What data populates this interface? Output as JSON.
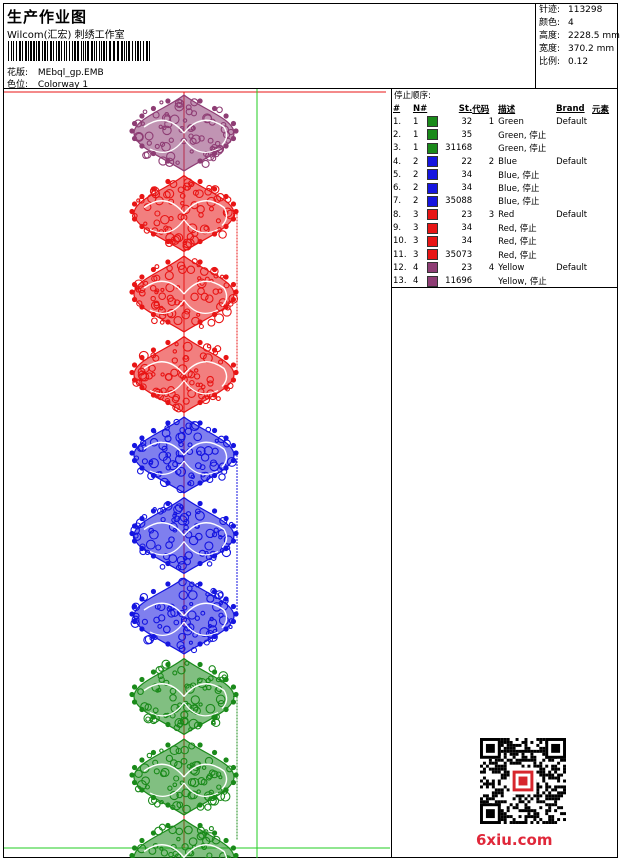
{
  "header": {
    "title": "生产作业图",
    "studio": "Wilcom(汇宏) 刺绣工作室",
    "file_label": "花版:",
    "file_value": "MEbql_gp.EMB",
    "colorway_label": "色位:",
    "colorway_value": "Colorway 1"
  },
  "stats": [
    {
      "label": "针迹:",
      "value": "113298"
    },
    {
      "label": "颜色:",
      "value": "4"
    },
    {
      "label": "高度:",
      "value": "2228.5 mm"
    },
    {
      "label": "宽度:",
      "value": "370.2 mm"
    },
    {
      "label": "比例:",
      "value": "0.12"
    }
  ],
  "stop_panel": {
    "title": "停止顺序:",
    "headers": [
      "#",
      "N#",
      "",
      "St.",
      "代码",
      "描述",
      "Brand",
      "元素"
    ],
    "rows": [
      {
        "num": "1.",
        "n": "1",
        "color": "#1a8a1a",
        "st": "32",
        "code": "1",
        "desc": "Green",
        "brand": "Default"
      },
      {
        "num": "2.",
        "n": "1",
        "color": "#1a8a1a",
        "st": "35",
        "code": "",
        "desc": "Green, 停止",
        "brand": ""
      },
      {
        "num": "3.",
        "n": "1",
        "color": "#1a8a1a",
        "st": "31168",
        "code": "",
        "desc": "Green, 停止",
        "brand": ""
      },
      {
        "num": "4.",
        "n": "2",
        "color": "#1515e0",
        "st": "22",
        "code": "2",
        "desc": "Blue",
        "brand": "Default"
      },
      {
        "num": "5.",
        "n": "2",
        "color": "#1515e0",
        "st": "34",
        "code": "",
        "desc": "Blue, 停止",
        "brand": ""
      },
      {
        "num": "6.",
        "n": "2",
        "color": "#1515e0",
        "st": "34",
        "code": "",
        "desc": "Blue, 停止",
        "brand": ""
      },
      {
        "num": "7.",
        "n": "2",
        "color": "#1515e0",
        "st": "35088",
        "code": "",
        "desc": "Blue, 停止",
        "brand": ""
      },
      {
        "num": "8.",
        "n": "3",
        "color": "#e81515",
        "st": "23",
        "code": "3",
        "desc": "Red",
        "brand": "Default"
      },
      {
        "num": "9.",
        "n": "3",
        "color": "#e81515",
        "st": "34",
        "code": "",
        "desc": "Red, 停止",
        "brand": ""
      },
      {
        "num": "10.",
        "n": "3",
        "color": "#e81515",
        "st": "34",
        "code": "",
        "desc": "Red, 停止",
        "brand": ""
      },
      {
        "num": "11.",
        "n": "3",
        "color": "#e81515",
        "st": "35073",
        "code": "",
        "desc": "Red, 停止",
        "brand": ""
      },
      {
        "num": "12.",
        "n": "4",
        "color": "#8e3d74",
        "st": "23",
        "code": "4",
        "desc": "Yellow",
        "brand": "Default"
      },
      {
        "num": "13.",
        "n": "4",
        "color": "#8e3d74",
        "st": "11696",
        "code": "",
        "desc": "Yellow, 停止",
        "brand": ""
      }
    ]
  },
  "design": {
    "motif_colors": [
      "#8e3d74",
      "#e81515",
      "#e81515",
      "#e81515",
      "#1515e0",
      "#1515e0",
      "#1515e0",
      "#1a8a1a",
      "#1a8a1a",
      "#1a8a1a"
    ],
    "guide_color_red": "#e81515",
    "guide_color_green": "#22cc22"
  },
  "watermark": "6xiu.com"
}
